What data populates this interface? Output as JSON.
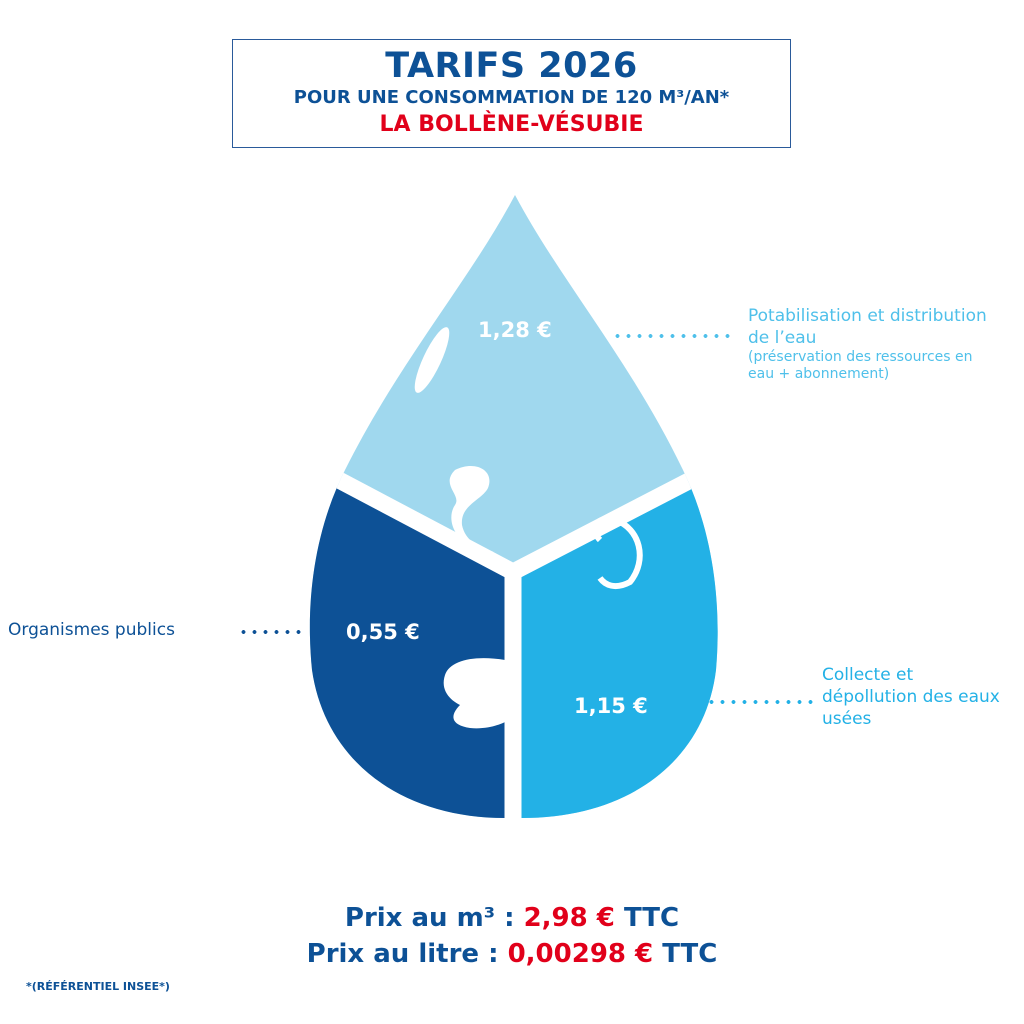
{
  "header": {
    "title": "TARIFS 2026",
    "subtitle": "POUR UNE CONSOMMATION DE 120 M³/AN*",
    "commune": "LA BOLLÈNE-VÉSUBIE"
  },
  "colors": {
    "dark_blue": "#0d5196",
    "light_blue": "#a0d8ee",
    "mid_blue": "#23b1e6",
    "red": "#e1001a"
  },
  "segments": [
    {
      "value": "1,28 €",
      "label": "Potabilisation et distribution de l’eau",
      "note": "(préservation des ressources en eau + abonnement)",
      "color": "#a0d8ee"
    },
    {
      "value": "0,55 €",
      "label": "Organismes publics",
      "color": "#0d5196"
    },
    {
      "value": "1,15 €",
      "label": "Collecte et dépollution des eaux usées",
      "color": "#23b1e6"
    }
  ],
  "price": {
    "m3_label": "Prix au m³ : ",
    "m3_value": "2,98 €",
    "m3_suffix": " TTC",
    "litre_label": "Prix au litre : ",
    "litre_value": "0,00298 €",
    "litre_suffix": " TTC"
  },
  "footnote": "*(RÉFÉRENTIEL INSEE*)"
}
